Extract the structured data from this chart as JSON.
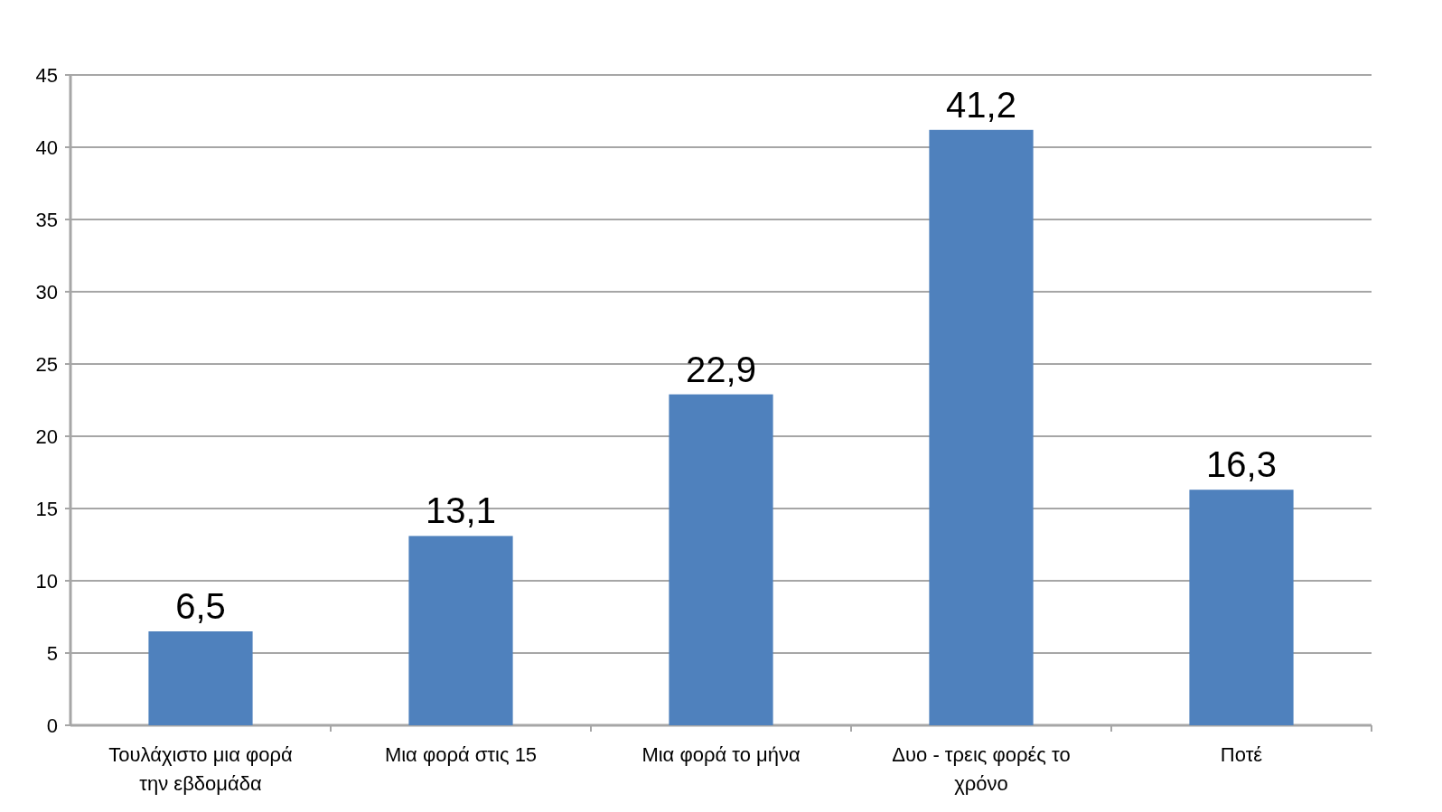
{
  "chart_data": {
    "type": "bar",
    "categories": [
      "Τουλάχιστο μια φορά την εβδομάδα",
      "Μια φορά στις 15",
      "Μια φορά το μήνα",
      "Δυο - τρεις φορές το χρόνο",
      "Ποτέ"
    ],
    "values": [
      6.5,
      13.1,
      22.9,
      41.2,
      16.3
    ],
    "value_labels": [
      "6,5",
      "13,1",
      "22,9",
      "41,2",
      "16,3"
    ],
    "color": "#4f81bd",
    "ylim": [
      0,
      45
    ],
    "yticks": [
      0,
      5,
      10,
      15,
      20,
      25,
      30,
      35,
      40,
      45
    ],
    "grid": "y"
  }
}
